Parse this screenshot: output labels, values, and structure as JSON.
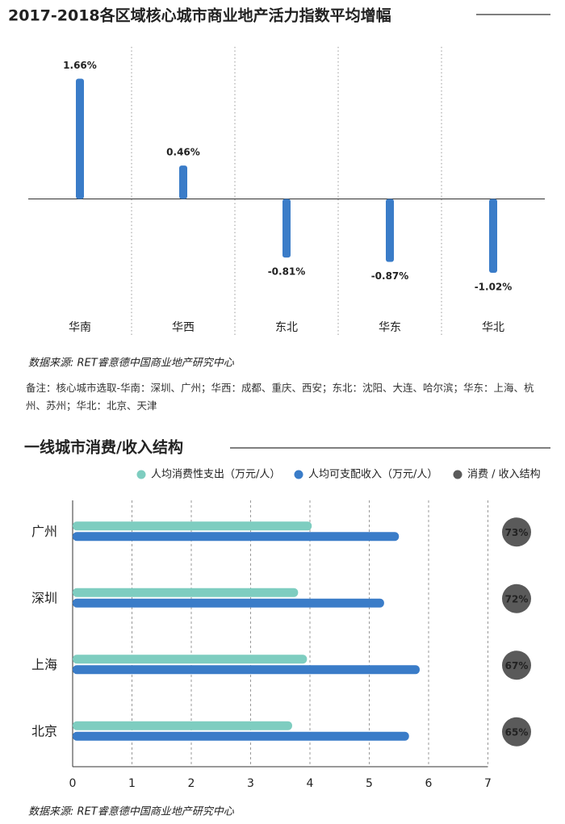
{
  "chart_data": [
    {
      "type": "bar",
      "title": "2017-2018各区域核心城市商业地产活力指数平均增幅",
      "categories": [
        "华南",
        "华西",
        "东北",
        "华东",
        "华北"
      ],
      "values": [
        1.66,
        0.46,
        -0.81,
        -0.87,
        -1.02
      ],
      "value_labels": [
        "1.66%",
        "0.46%",
        "-0.81%",
        "-0.87%",
        "-1.02%"
      ],
      "color": "#3a7cc8",
      "ylim": [
        -1.6,
        2.0
      ],
      "source": "数据来源: RET睿意德中国商业地产研究中心",
      "note": "备注：核心城市选取-华南：深圳、广州；华西：成都、重庆、西安；东北：沈阳、大连、哈尔滨；华东：上海、杭州、苏州；华北：北京、天津"
    },
    {
      "type": "barh",
      "title": "一线城市消费/收入结构",
      "categories": [
        "广州",
        "深圳",
        "上海",
        "北京"
      ],
      "series": [
        {
          "name": "人均消费性支出（万元/人）",
          "color": "#7ecdc0",
          "values": [
            4.03,
            3.8,
            3.95,
            3.7
          ]
        },
        {
          "name": "人均可支配收入（万元/人）",
          "color": "#3a7cc8",
          "values": [
            5.5,
            5.25,
            5.85,
            5.67
          ]
        },
        {
          "name": "消费 / 收入结构",
          "color": "#5a5a5a",
          "marker": "circle",
          "values": [
            73,
            72,
            67,
            65
          ],
          "value_labels": [
            "73%",
            "72%",
            "67%",
            "65%"
          ]
        }
      ],
      "xlim": [
        0,
        7
      ],
      "xticks": [
        0,
        1,
        2,
        3,
        4,
        5,
        6,
        7
      ],
      "grid": true,
      "source": "数据来源: RET睿意德中国商业地产研究中心"
    }
  ]
}
